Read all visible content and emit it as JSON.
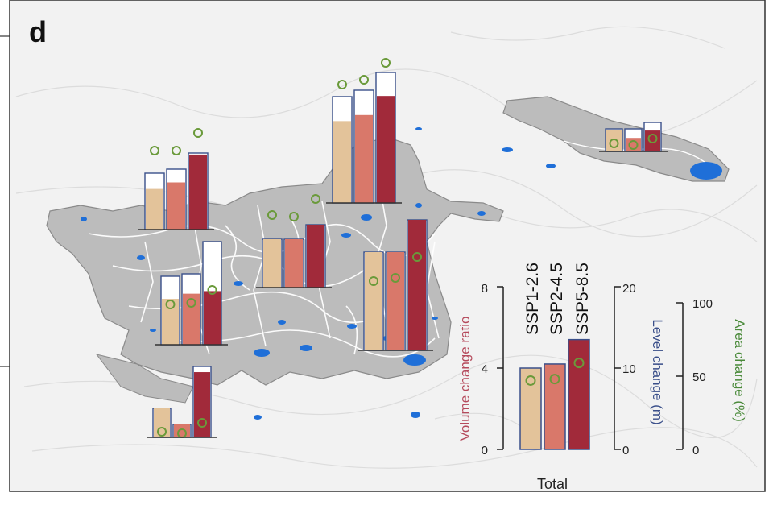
{
  "panel_label": "d",
  "scenarios": [
    "SSP1-2.6",
    "SSP2-4.5",
    "SSP5-8.5"
  ],
  "colors": {
    "ssp126": "#e3c39a",
    "ssp245": "#d9786a",
    "ssp585": "#a12a3a",
    "area_marker": "#6a9a3a",
    "frame": "#3a4f8a",
    "lake": "#1f6fd8",
    "region_fill": "#bdbdbd",
    "background_terrain": "#ececec"
  },
  "legend": {
    "volume_label": "Volume change ratio",
    "level_label": "Level change (m)",
    "area_label": "Area change (%)",
    "total_label": "Total",
    "volume_ticks": [
      "0",
      "4",
      "8"
    ],
    "level_ticks": [
      "0",
      "10",
      "20"
    ],
    "area_ticks": [
      "0",
      "50",
      "100"
    ]
  },
  "chart_data": {
    "type": "bar",
    "title": "Total",
    "categories": [
      "SSP1-2.6",
      "SSP2-4.5",
      "SSP5-8.5"
    ],
    "series": [
      {
        "name": "Volume change ratio",
        "values": [
          4.0,
          4.2,
          5.4
        ]
      },
      {
        "name": "Area change (%)",
        "values": [
          47,
          48,
          59
        ]
      }
    ],
    "xlabel": "",
    "ylabel": "Volume change ratio",
    "ylim": [
      0,
      8
    ],
    "secondary_axes": [
      {
        "label": "Level change (m)",
        "range": [
          0,
          20
        ]
      },
      {
        "label": "Area change (%)",
        "range": [
          0,
          100
        ]
      }
    ]
  }
}
